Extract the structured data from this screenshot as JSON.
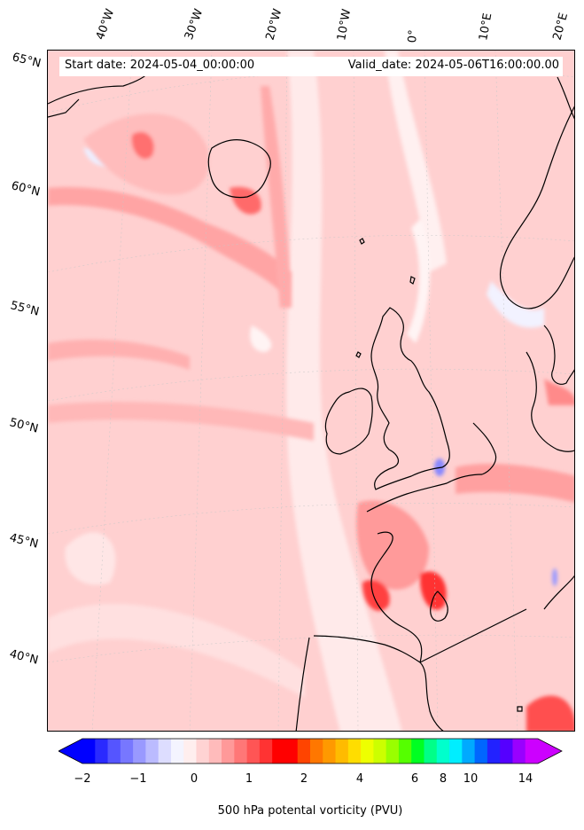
{
  "map": {
    "start_date": "Start date: 2024-05-04_00:00:00",
    "valid_date": "Valid_date: 2024-05-06T16:00:00.00",
    "longitude_labels": [
      "40°W",
      "30°W",
      "20°W",
      "10°W",
      "0°",
      "10°E",
      "20°E"
    ],
    "latitude_labels": [
      "65°N",
      "60°N",
      "55°N",
      "50°N",
      "45°N",
      "40°N"
    ],
    "field": "500 hPa potental vorticity (PVU)",
    "region": "North Atlantic and Western Europe"
  },
  "colorbar": {
    "label": "500 hPa potental vorticity (PVU)",
    "ticks": [
      "−2",
      "−1",
      "0",
      "1",
      "2",
      "4",
      "6",
      "8",
      "10",
      "14"
    ],
    "colors": [
      "#0000ff",
      "#2a2aff",
      "#5555ff",
      "#7777ff",
      "#9999ff",
      "#bbbbff",
      "#ddddff",
      "#f4f4ff",
      "#ffeeee",
      "#ffd3d3",
      "#ffbbbb",
      "#ff9999",
      "#ff7777",
      "#ff5555",
      "#ff3333",
      "#ff0000",
      "#ff0000",
      "#ff4400",
      "#ff7700",
      "#ff9900",
      "#ffbb00",
      "#ffdd00",
      "#eeff00",
      "#ccff00",
      "#99ff00",
      "#55ff00",
      "#00ff22",
      "#00ff88",
      "#00ffcc",
      "#00eeff",
      "#00aaff",
      "#0066ff",
      "#2222ff",
      "#5500ff",
      "#9900ff",
      "#cc00ff"
    ],
    "extend_colors": {
      "low": "#0000ff",
      "high": "#cc00ff"
    }
  }
}
